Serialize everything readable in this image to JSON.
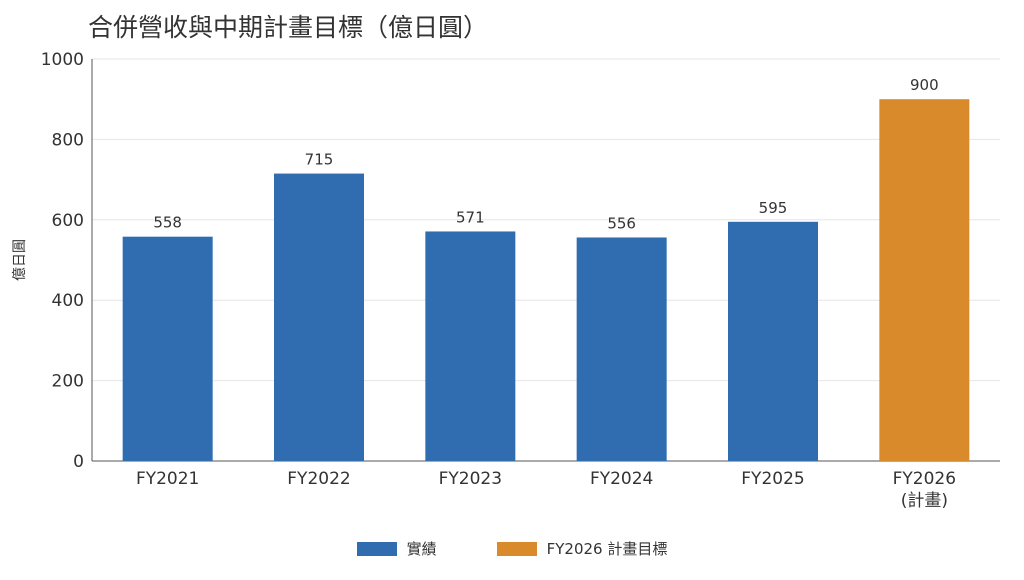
{
  "chart_data": {
    "type": "bar",
    "title": "合併營收與中期計畫目標（億日圓）",
    "ylabel": "億日圓",
    "ylim": [
      0,
      1000
    ],
    "yticks": [
      0,
      200,
      400,
      600,
      800,
      1000
    ],
    "categories": [
      "FY2021",
      "FY2022",
      "FY2023",
      "FY2024",
      "FY2025",
      "FY2026\n(計畫)"
    ],
    "values": [
      558,
      715,
      571,
      556,
      595,
      900
    ],
    "data_labels": [
      "558",
      "715",
      "571",
      "556",
      "595",
      "900"
    ],
    "bar_series": [
      "actual",
      "actual",
      "actual",
      "actual",
      "actual",
      "plan"
    ],
    "series": [
      {
        "name": "實績",
        "color": "#2f6db0"
      },
      {
        "name": "FY2026 計畫目標",
        "color": "#d98b2b"
      }
    ],
    "grid": true,
    "legend_position": "bottom-center"
  }
}
